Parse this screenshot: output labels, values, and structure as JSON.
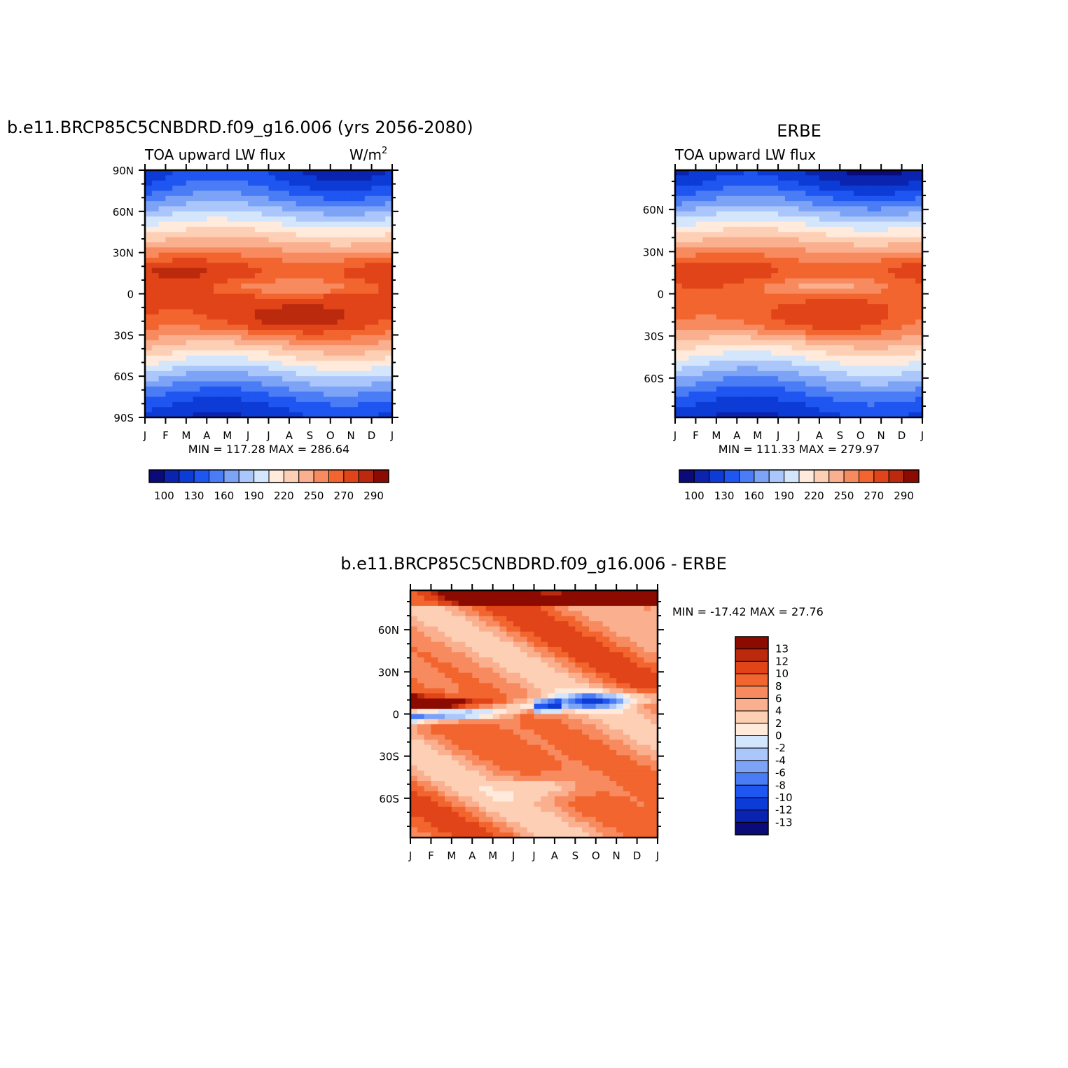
{
  "chart_data": [
    {
      "type": "heatmap",
      "title": "b.e11.BRCP85C5CNBDRD.f09_g16.006 (yrs 2056-2080)",
      "left_label": "TOA upward LW flux",
      "right_label": "W/m",
      "right_label_sup": "2",
      "x_ticks": [
        "J",
        "F",
        "M",
        "A",
        "M",
        "J",
        "J",
        "A",
        "S",
        "O",
        "N",
        "D",
        "J"
      ],
      "y_ticks": [
        {
          "v": 90,
          "label": "90N"
        },
        {
          "v": 60,
          "label": "60N"
        },
        {
          "v": 30,
          "label": "30N"
        },
        {
          "v": 0,
          "label": "0"
        },
        {
          "v": -30,
          "label": "30S"
        },
        {
          "v": -60,
          "label": "60S"
        },
        {
          "v": -90,
          "label": "90S"
        }
      ],
      "ylim": [
        -90,
        90
      ],
      "stats": "MIN = 117.28  MAX = 286.64",
      "colorbar_levels": [
        100,
        110,
        120,
        130,
        140,
        150,
        160,
        170,
        180,
        190,
        200,
        210,
        220,
        230,
        240,
        250,
        260,
        270,
        280,
        290
      ],
      "colorbar_labels": [
        "100",
        "130",
        "160",
        "190",
        "220",
        "250",
        "270",
        "290"
      ]
    },
    {
      "type": "heatmap",
      "title": "ERBE",
      "left_label": "TOA upward LW flux",
      "x_ticks": [
        "J",
        "F",
        "M",
        "A",
        "M",
        "J",
        "J",
        "A",
        "S",
        "O",
        "N",
        "D",
        "J"
      ],
      "y_ticks": [
        {
          "v": 60,
          "label": "60N"
        },
        {
          "v": 30,
          "label": "30N"
        },
        {
          "v": 0,
          "label": "0"
        },
        {
          "v": -30,
          "label": "30S"
        },
        {
          "v": -60,
          "label": "60S"
        }
      ],
      "ylim": [
        -88,
        88
      ],
      "stats": "MIN = 111.33  MAX = 279.97",
      "colorbar_levels": [
        100,
        110,
        120,
        130,
        140,
        150,
        160,
        170,
        180,
        190,
        200,
        210,
        220,
        230,
        240,
        250,
        260,
        270,
        280,
        290
      ],
      "colorbar_labels": [
        "100",
        "130",
        "160",
        "190",
        "220",
        "250",
        "270",
        "290"
      ]
    },
    {
      "type": "heatmap",
      "title": "b.e11.BRCP85C5CNBDRD.f09_g16.006 - ERBE",
      "x_ticks": [
        "J",
        "F",
        "M",
        "A",
        "M",
        "J",
        "J",
        "A",
        "S",
        "O",
        "N",
        "D",
        "J"
      ],
      "y_ticks": [
        {
          "v": 60,
          "label": "60N"
        },
        {
          "v": 30,
          "label": "30N"
        },
        {
          "v": 0,
          "label": "0"
        },
        {
          "v": -30,
          "label": "30S"
        },
        {
          "v": -60,
          "label": "60S"
        }
      ],
      "ylim": [
        -88,
        88
      ],
      "stats": "MIN = -17.42  MAX =  27.76",
      "colorbar_levels": [
        -13,
        -12,
        -10,
        -8,
        -6,
        -4,
        -2,
        0,
        2,
        4,
        6,
        8,
        10,
        12,
        13
      ],
      "colorbar_labels": [
        "13",
        "12",
        "10",
        "8",
        "6",
        "4",
        "2",
        "0",
        "-2",
        "-4",
        "-6",
        "-8",
        "-10",
        "-12",
        "-13"
      ]
    }
  ],
  "colors": {
    "main_scale": [
      "#0a0a78",
      "#0b24b0",
      "#0d3bd6",
      "#1f55f0",
      "#4a7cf5",
      "#7da3f7",
      "#aac6fa",
      "#d4e6fc",
      "#ffeadc",
      "#fdd0b6",
      "#fab08e",
      "#f78a5e",
      "#f2652f",
      "#e04418",
      "#bb2a0c",
      "#8c0b00"
    ],
    "diff_scale": [
      "#0a0a78",
      "#0b24b0",
      "#0d3bd6",
      "#1f55f0",
      "#4a7cf5",
      "#7da3f7",
      "#aac6fa",
      "#d4e6fc",
      "#ffeadc",
      "#fdd0b6",
      "#fab08e",
      "#f78a5e",
      "#f2652f",
      "#e04418",
      "#bb2a0c",
      "#8c0b00"
    ]
  }
}
